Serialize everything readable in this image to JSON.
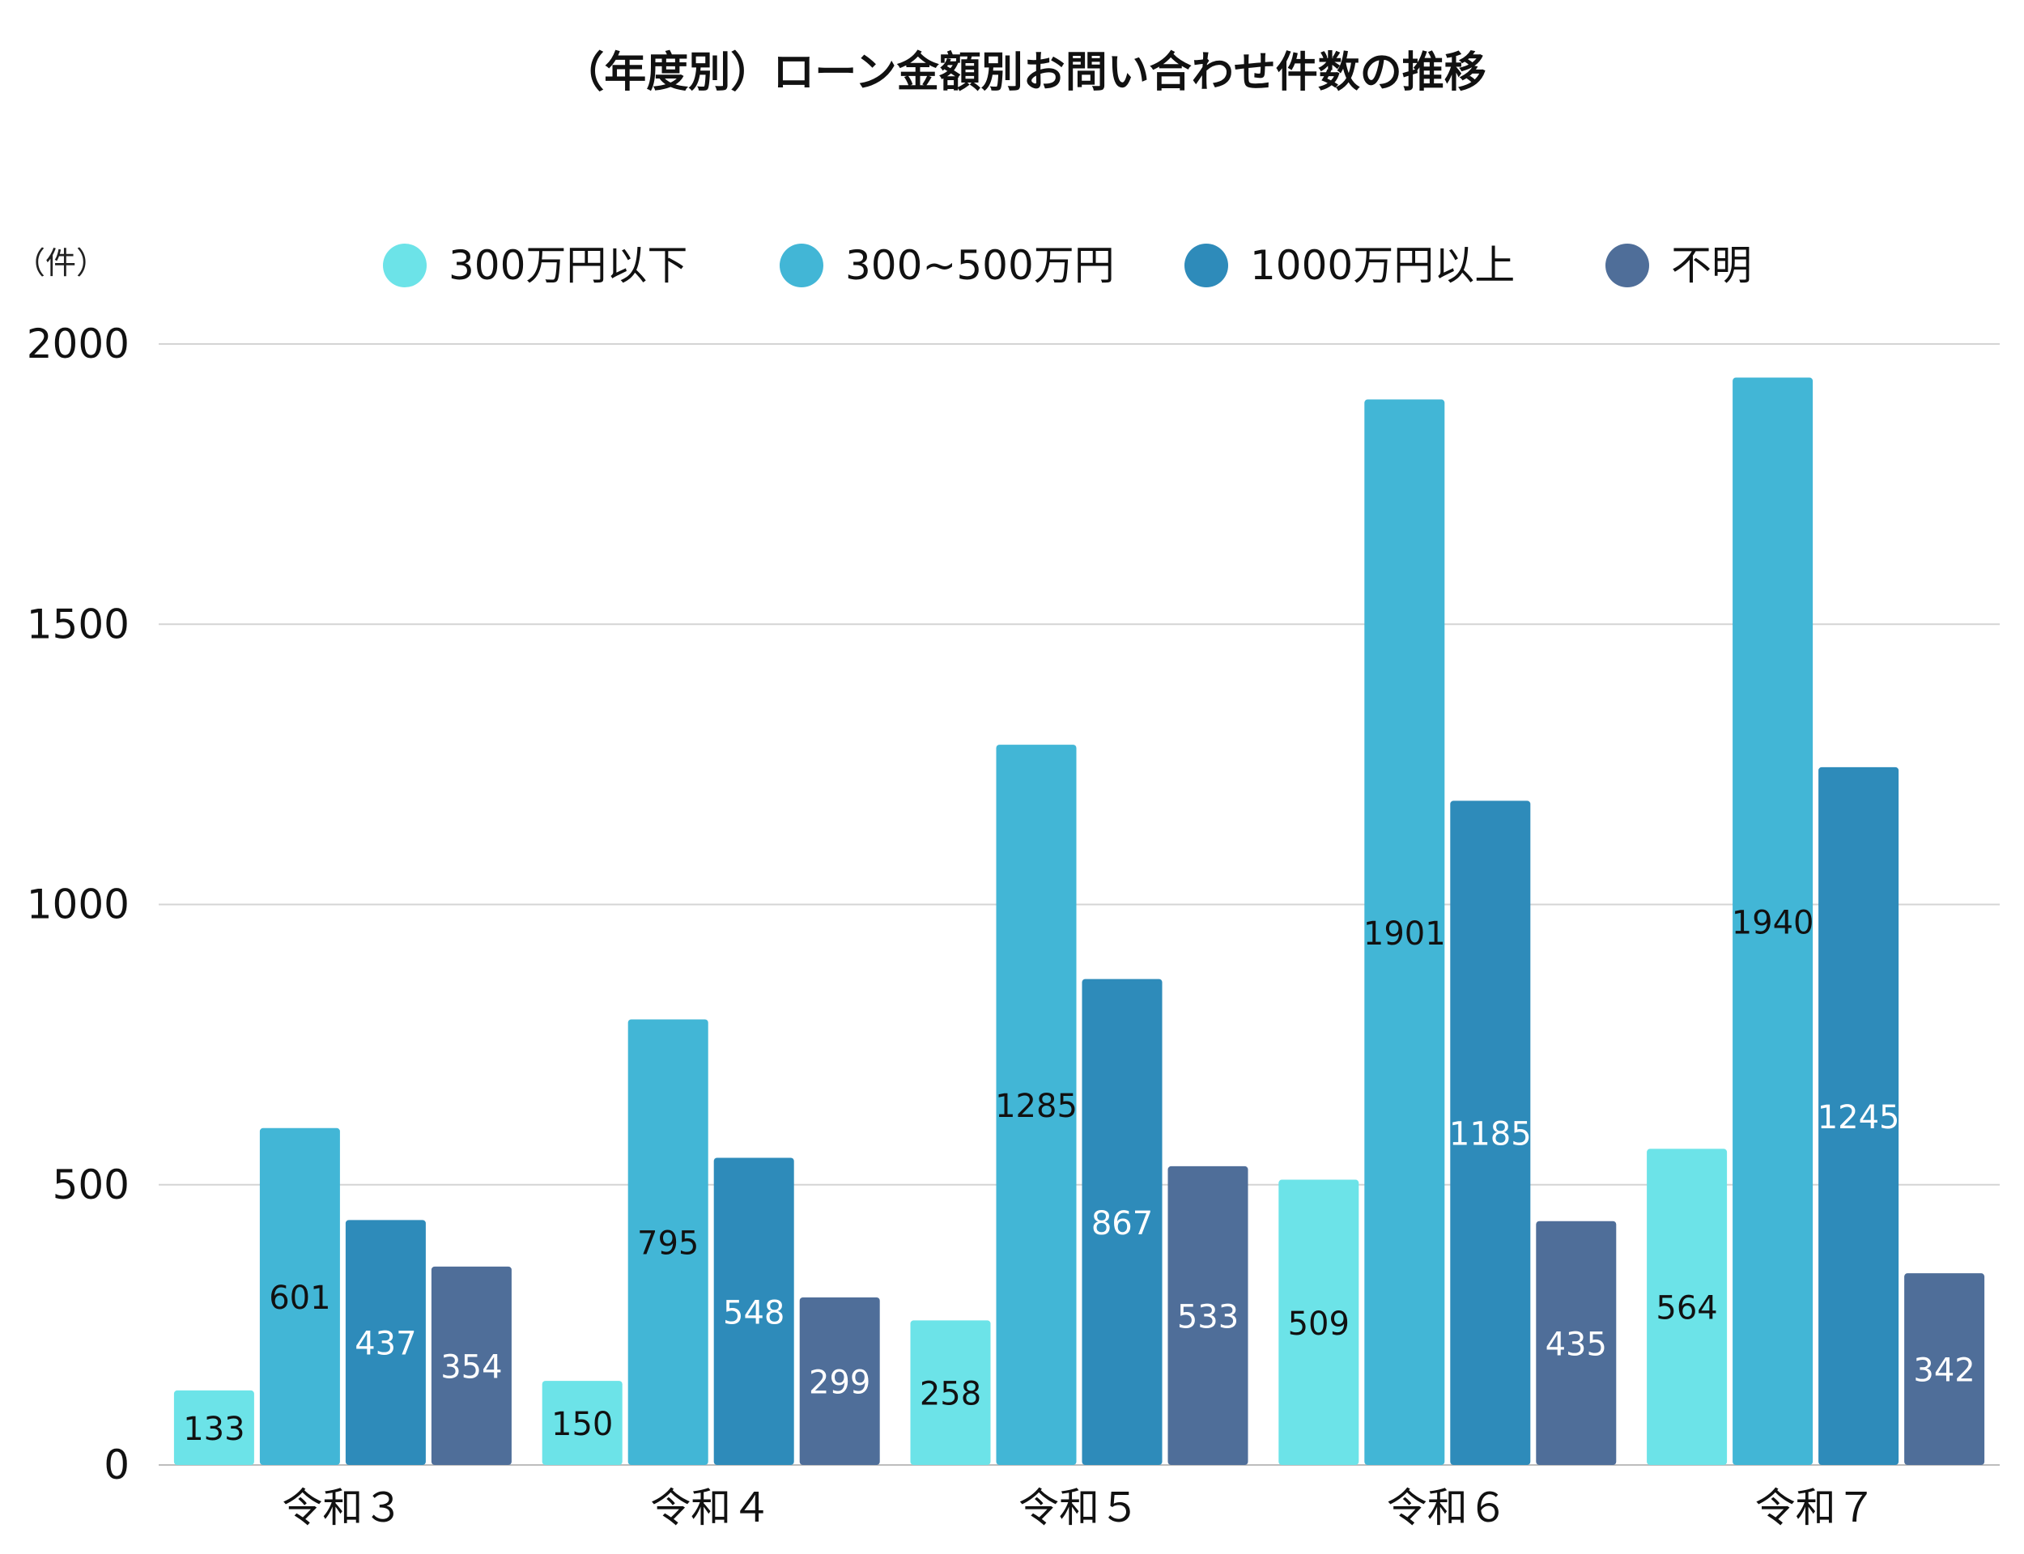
{
  "chart_data": {
    "type": "bar",
    "title": "（年度別）ローン金額別お問い合わせ件数の推移",
    "ylabel": "（件）",
    "xlabel": "",
    "categories": [
      "令和３",
      "令和４",
      "令和５",
      "令和６",
      "令和７"
    ],
    "ylim": [
      0,
      2000
    ],
    "yticks": [
      0,
      500,
      1000,
      1500,
      2000
    ],
    "grid": true,
    "legend_position": "top",
    "series": [
      {
        "name": "300万円以下",
        "color": "#6ce3e8",
        "label_color": "#111111",
        "values": [
          133,
          150,
          258,
          509,
          564
        ]
      },
      {
        "name": "300~500万円",
        "color": "#42b6d6",
        "label_color": "#111111",
        "values": [
          601,
          795,
          1285,
          1901,
          1940
        ]
      },
      {
        "name": "1000万円以上",
        "color": "#2e8bba",
        "label_color": "#ffffff",
        "values": [
          437,
          548,
          867,
          1185,
          1245
        ]
      },
      {
        "name": "不明",
        "color": "#4f6e99",
        "label_color": "#ffffff",
        "values": [
          354,
          299,
          533,
          435,
          342
        ]
      }
    ]
  }
}
